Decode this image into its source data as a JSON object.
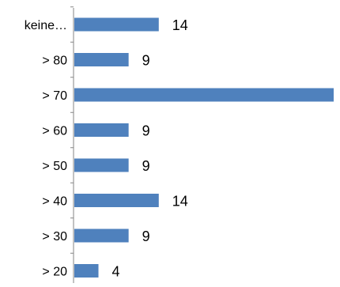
{
  "chart_data": {
    "type": "bar",
    "orientation": "horizontal",
    "categories": [
      "keine…",
      "> 80",
      "> 70",
      "> 60",
      "> 50",
      "> 40",
      "> 30",
      "> 20"
    ],
    "values": [
      14,
      9,
      43,
      9,
      9,
      14,
      9,
      4
    ],
    "data_labels": [
      "14",
      "9",
      "",
      "9",
      "9",
      "14",
      "9",
      "4"
    ],
    "title": "",
    "xlabel": "",
    "ylabel": "",
    "xlim": [
      0,
      43
    ],
    "grid": false,
    "legend": "none",
    "bar_color": "#4f81bd",
    "axis_color": "#868686"
  }
}
